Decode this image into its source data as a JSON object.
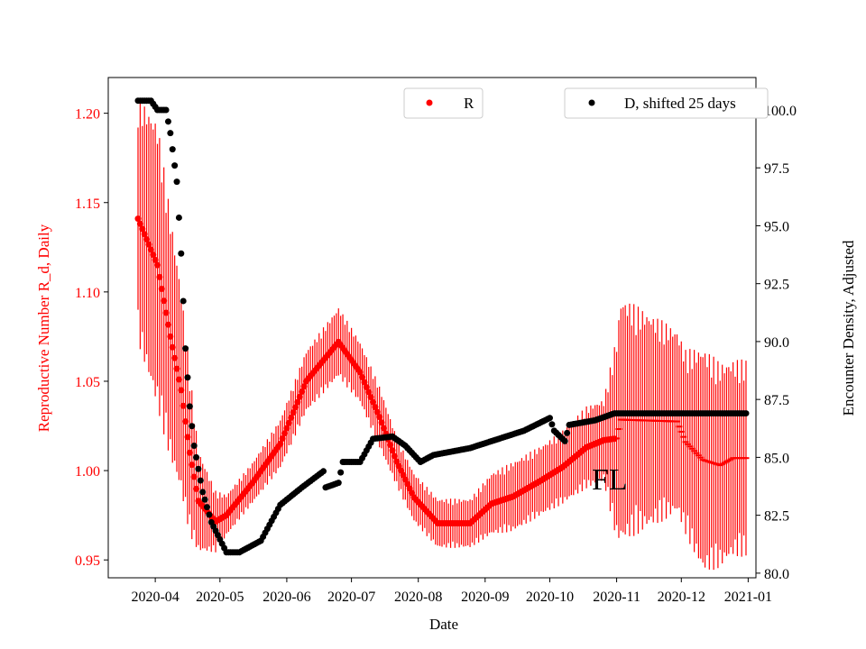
{
  "chart_data": {
    "type": "scatter",
    "title": "",
    "annotation": "FL",
    "xlabel": "Date",
    "ylabel_left": "Reproductive Number R_d, Daily",
    "ylabel_right": "Encounter Density, Adjusted",
    "start_date": "2020-03-24",
    "x_ticks": [
      "2020-04",
      "2020-05",
      "2020-06",
      "2020-07",
      "2020-08",
      "2020-09",
      "2020-10",
      "2020-11",
      "2020-12",
      "2021-01"
    ],
    "x_tick_days": [
      8,
      38,
      69,
      99,
      130,
      161,
      191,
      222,
      252,
      283
    ],
    "ylim_left": [
      0.94,
      1.22
    ],
    "y_ticks_left": [
      "0.95",
      "1.00",
      "1.05",
      "1.10",
      "1.15",
      "1.20"
    ],
    "ylim_right": [
      79.8,
      101.4
    ],
    "y_ticks_right": [
      "80.0",
      "82.5",
      "85.0",
      "87.5",
      "90.0",
      "92.5",
      "95.0",
      "97.5",
      "100.0"
    ],
    "colors": {
      "R": "#ff0000",
      "D": "#000000"
    },
    "series": [
      {
        "name": "R",
        "legend": "R",
        "marker_change_day": 222,
        "points_day_value_halferr": [
          [
            0,
            1.141,
            0.06
          ],
          [
            9,
            1.115,
            0.07
          ],
          [
            15,
            1.075,
            0.06
          ],
          [
            20,
            1.045,
            0.05
          ],
          [
            24,
            1.01,
            0.04
          ],
          [
            28,
            0.983,
            0.025
          ],
          [
            36,
            0.9715,
            0.015
          ],
          [
            41,
            0.975,
            0.01
          ],
          [
            53,
            0.993,
            0.01
          ],
          [
            66,
            1.015,
            0.012
          ],
          [
            78,
            1.05,
            0.015
          ],
          [
            93,
            1.072,
            0.017
          ],
          [
            103,
            1.055,
            0.015
          ],
          [
            112,
            1.03,
            0.015
          ],
          [
            120,
            1.005,
            0.012
          ],
          [
            128,
            0.985,
            0.012
          ],
          [
            139,
            0.9705,
            0.012
          ],
          [
            154,
            0.9705,
            0.012
          ],
          [
            164,
            0.9815,
            0.015
          ],
          [
            174,
            0.9855,
            0.017
          ],
          [
            187,
            0.9945,
            0.017
          ],
          [
            197,
            1.002,
            0.018
          ],
          [
            208,
            1.013,
            0.02
          ],
          [
            216,
            1.017,
            0.02
          ],
          [
            222,
            1.018,
            0.05
          ],
          [
            224,
            1.0285,
            0.06
          ],
          [
            250,
            1.0275,
            0.045
          ],
          [
            254,
            1.016,
            0.045
          ],
          [
            262,
            1.006,
            0.055
          ],
          [
            270,
            1.003,
            0.05
          ],
          [
            276,
            1.007,
            0.048
          ],
          [
            282,
            1.007,
            0.048
          ]
        ]
      },
      {
        "name": "D",
        "legend": "D, shifted 25 days",
        "points_day_value": [
          [
            0,
            100.4
          ],
          [
            6,
            100.4
          ],
          [
            9,
            100
          ],
          [
            13,
            100
          ],
          [
            15,
            99
          ],
          [
            18,
            96.9
          ],
          [
            20,
            93.8
          ],
          [
            22,
            89.7
          ],
          [
            24,
            87.2
          ],
          [
            26,
            85.5
          ],
          [
            30,
            83.5
          ],
          [
            34,
            82.2
          ],
          [
            41,
            80.9
          ],
          [
            47,
            80.9
          ],
          [
            57,
            81.4
          ],
          [
            66,
            82.95
          ],
          [
            76,
            83.7
          ],
          [
            86,
            84.4
          ],
          [
            87,
            83.7
          ],
          [
            93,
            83.9
          ],
          [
            95,
            84.8
          ],
          [
            103,
            84.8
          ],
          [
            109,
            85.8
          ],
          [
            118,
            85.9
          ],
          [
            124,
            85.5
          ],
          [
            131,
            84.8
          ],
          [
            137,
            85.1
          ],
          [
            154,
            85.4
          ],
          [
            164,
            85.7
          ],
          [
            179,
            86.15
          ],
          [
            191,
            86.7
          ],
          [
            193,
            86.15
          ],
          [
            198,
            85.7
          ],
          [
            200,
            86.4
          ],
          [
            212,
            86.6
          ],
          [
            221,
            86.9
          ],
          [
            282,
            86.9
          ]
        ]
      }
    ]
  }
}
